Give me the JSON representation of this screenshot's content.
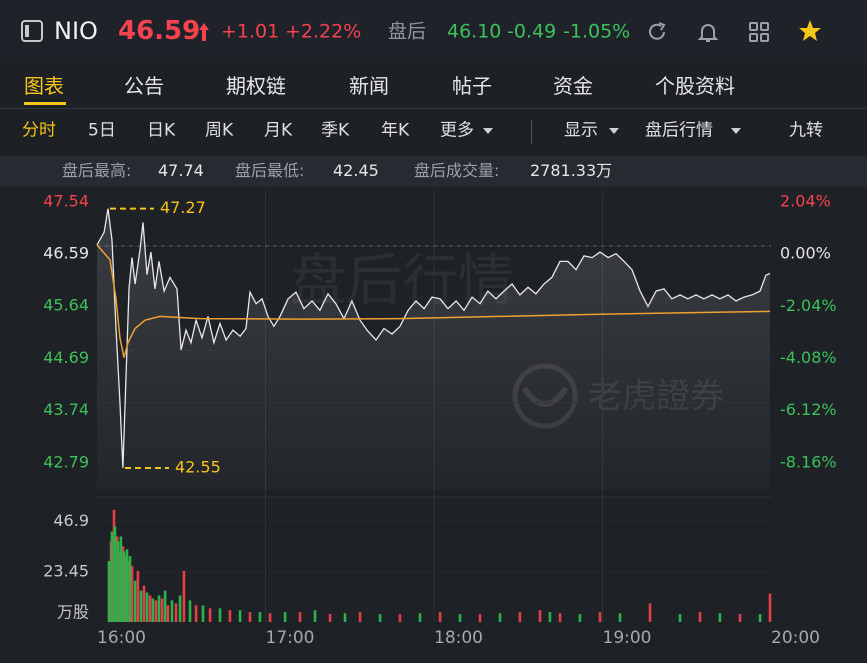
{
  "header": {
    "symbol": "NIO",
    "price": "46.59",
    "change": "+1.01",
    "change_pct": "+2.22%",
    "after_label": "盘后",
    "after_price": "46.10",
    "after_change": "-0.49",
    "after_change_pct": "-1.05%"
  },
  "tabs": [
    "图表",
    "公告",
    "期权链",
    "新闻",
    "帖子",
    "资金",
    "个股资料"
  ],
  "toolbar": [
    "分时",
    "5日",
    "日K",
    "周K",
    "月K",
    "季K",
    "年K",
    "更多",
    "显示",
    "盘后行情",
    "九转"
  ],
  "stats": [
    {
      "label": "盘后最高:",
      "value": "47.74"
    },
    {
      "label": "盘后最低:",
      "value": "42.45"
    },
    {
      "label": "盘后成交量:",
      "value": "2781.33万"
    }
  ],
  "chart_data": {
    "type": "line",
    "watermark": "盘后行情",
    "brand": "老虎證券",
    "xlim": [
      16,
      20
    ],
    "xticks": [
      {
        "value": 16,
        "label": "16:00"
      },
      {
        "value": 17,
        "label": "17:00"
      },
      {
        "value": 18,
        "label": "18:00"
      },
      {
        "value": 19,
        "label": "19:00"
      },
      {
        "value": 20,
        "label": "20:00"
      }
    ],
    "ylim": [
      42.15,
      47.61
    ],
    "yticks": [
      47.54,
      46.59,
      45.64,
      44.69,
      43.74,
      42.79
    ],
    "y2lim": [
      -9.53,
      2.19
    ],
    "y2ticks": [
      {
        "value": 2.04,
        "label": "2.04%"
      },
      {
        "value": 0,
        "label": "0.00%"
      },
      {
        "value": -2.04,
        "label": "-2.04%"
      },
      {
        "value": -4.08,
        "label": "-4.08%"
      },
      {
        "value": -6.12,
        "label": "-6.12%"
      },
      {
        "value": -8.16,
        "label": "-8.16%"
      }
    ],
    "series": [
      {
        "color": "#e8e8e8",
        "x": [
          16.0,
          16.042,
          16.065,
          16.089,
          16.113,
          16.136,
          16.154,
          16.172,
          16.19,
          16.208,
          16.226,
          16.255,
          16.273,
          16.297,
          16.32,
          16.344,
          16.368,
          16.398,
          16.433,
          16.475,
          16.499,
          16.528,
          16.558,
          16.588,
          16.623,
          16.659,
          16.694,
          16.73,
          16.766,
          16.807,
          16.849,
          16.884,
          16.908,
          16.944,
          16.979,
          17.015,
          17.05,
          17.086,
          17.134,
          17.181,
          17.228,
          17.276,
          17.323,
          17.371,
          17.418,
          17.466,
          17.513,
          17.561,
          17.608,
          17.656,
          17.703,
          17.751,
          17.798,
          17.846,
          17.893,
          17.941,
          17.988,
          18.036,
          18.083,
          18.131,
          18.178,
          18.226,
          18.273,
          18.32,
          18.368,
          18.415,
          18.463,
          18.51,
          18.558,
          18.605,
          18.653,
          18.7,
          18.748,
          18.795,
          18.843,
          18.89,
          18.938,
          18.985,
          19.033,
          19.08,
          19.128,
          19.175,
          19.223,
          19.27,
          19.318,
          19.365,
          19.412,
          19.46,
          19.507,
          19.555,
          19.602,
          19.65,
          19.697,
          19.745,
          19.792,
          19.84,
          19.887,
          19.935,
          19.97,
          19.994
        ],
        "values": [
          46.61,
          46.84,
          47.27,
          46.7,
          45.09,
          43.76,
          42.55,
          44.2,
          45.81,
          46.38,
          45.9,
          46.52,
          47.02,
          46.07,
          46.48,
          45.81,
          46.31,
          45.77,
          46.02,
          45.81,
          44.7,
          45.06,
          44.83,
          45.24,
          44.92,
          45.31,
          44.83,
          45.18,
          44.88,
          45.06,
          44.95,
          45.09,
          45.75,
          45.54,
          45.63,
          45.31,
          45.13,
          45.31,
          45.63,
          45.75,
          45.45,
          45.59,
          45.42,
          45.72,
          45.54,
          45.27,
          45.59,
          45.24,
          45.04,
          44.88,
          45.09,
          44.99,
          45.13,
          45.42,
          45.59,
          45.45,
          45.66,
          45.63,
          45.45,
          45.59,
          45.42,
          45.66,
          45.54,
          45.77,
          45.63,
          45.77,
          45.9,
          45.7,
          45.84,
          45.72,
          45.9,
          46.02,
          46.31,
          46.31,
          46.16,
          46.41,
          46.38,
          46.48,
          46.38,
          46.45,
          46.31,
          46.16,
          45.77,
          45.49,
          45.77,
          45.81,
          45.63,
          45.7,
          45.63,
          45.7,
          45.63,
          45.7,
          45.63,
          45.7,
          45.59,
          45.66,
          45.7,
          45.77,
          46.06,
          46.09
        ]
      },
      {
        "color": "#f0a030",
        "x": [
          16.0,
          16.077,
          16.113,
          16.136,
          16.16,
          16.184,
          16.226,
          16.285,
          16.374,
          16.611,
          17.205,
          17.798,
          18.392,
          18.985,
          19.579,
          19.994
        ],
        "values": [
          46.61,
          46.34,
          45.63,
          44.92,
          44.56,
          44.83,
          45.09,
          45.24,
          45.31,
          45.27,
          45.26,
          45.27,
          45.31,
          45.35,
          45.38,
          45.4
        ]
      }
    ],
    "annotations": [
      {
        "x": 16.065,
        "value": 47.27
      },
      {
        "x": 16.154,
        "value": 42.55
      }
    ],
    "annotation_color": "#f5c518",
    "volume": {
      "type": "bar",
      "ylim": [
        0,
        54.7
      ],
      "yticks": [
        46.9,
        23.45
      ],
      "unit": "万股",
      "series": [
        {
          "color": "#e5404a",
          "x": [
            16.083,
            16.101,
            16.119,
            16.136,
            16.154,
            16.172,
            16.19,
            16.208,
            16.243,
            16.279,
            16.315,
            16.35,
            16.386,
            16.421,
            16.469,
            16.516,
            16.588,
            16.671,
            16.789,
            16.908,
            17.027,
            17.205,
            17.383,
            17.561,
            17.798,
            18.036,
            18.273,
            18.51,
            18.629,
            18.748,
            18.985,
            19.282,
            19.579,
            19.816,
            19.994
          ],
          "values": [
            37.7,
            52.4,
            40,
            33.1,
            35.4,
            30.8,
            28.5,
            26.2,
            23.9,
            17,
            12.4,
            10.1,
            11,
            7.8,
            8.7,
            23.9,
            7.8,
            6.4,
            5.5,
            4.6,
            4.1,
            4.6,
            3.7,
            4.6,
            3.7,
            4.6,
            3.7,
            4.6,
            5.5,
            4.1,
            4.6,
            8.7,
            4.6,
            3.7,
            13.3
          ]
        },
        {
          "color": "#2cb24a",
          "x": [
            16.071,
            16.089,
            16.107,
            16.125,
            16.142,
            16.16,
            16.178,
            16.196,
            16.226,
            16.261,
            16.297,
            16.332,
            16.368,
            16.404,
            16.445,
            16.493,
            16.552,
            16.629,
            16.73,
            16.849,
            16.967,
            17.116,
            17.294,
            17.472,
            17.68,
            17.917,
            18.154,
            18.392,
            18.688,
            18.866,
            19.104,
            19.46,
            19.697,
            19.935
          ],
          "values": [
            28.5,
            42.3,
            44.6,
            37.7,
            40,
            33.1,
            34,
            30.8,
            19.3,
            14.7,
            13.8,
            11,
            12.4,
            14.7,
            10.1,
            12.4,
            10.1,
            7.8,
            6.4,
            5.5,
            4.6,
            4.6,
            5.5,
            4.1,
            3.7,
            4.1,
            3.7,
            4.1,
            4.6,
            3.7,
            4.1,
            3.7,
            4.1,
            3.7
          ]
        }
      ]
    }
  }
}
